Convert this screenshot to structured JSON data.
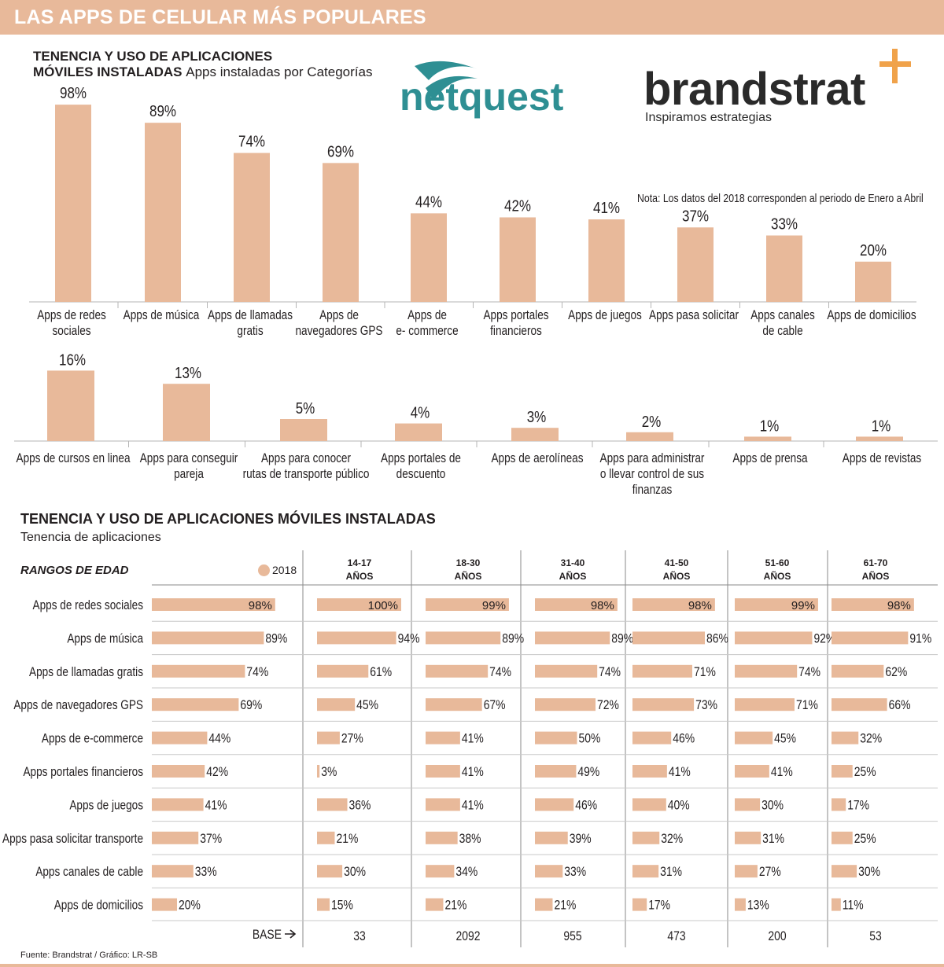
{
  "banner": {
    "title": "LAS APPS DE CELULAR MÁS POPULARES"
  },
  "section1": {
    "title_line1": "TENENCIA Y USO DE APLICACIONES",
    "title_line2": "MÓVILES INSTALADAS",
    "subtitle": "Apps instaladas por Categorías",
    "note": "Nota: Los datos del 2018 corresponden al periodo de Enero a Abril"
  },
  "logos": {
    "netquest": "netquest",
    "brandstrat": "brandstrat",
    "brandstrat_tagline": "Inspiramos estrategias"
  },
  "section2": {
    "title": "TENENCIA Y USO DE APLICACIONES MÓVILES INSTALADAS",
    "subtitle": "Tenencia de aplicaciones",
    "age_label": "RANGOS DE EDAD",
    "legend": "2018",
    "base_label": "BASE"
  },
  "footer": "Fuente: Brandstrat  / Gráfico: LR-SB",
  "colors": {
    "bar": "#e8b99a",
    "text": "#231f20",
    "teal": "#2e8f93",
    "orange": "#f0a24a"
  },
  "chart_data": [
    {
      "type": "bar",
      "title": "Apps instaladas por Categorías (1)",
      "categories": [
        "Apps de redes\nsociales",
        "Apps de música",
        "Apps de llamadas\ngratis",
        "Apps de\nnavegadores GPS",
        "Apps de\ne- commerce",
        "Apps portales\nfinancieros",
        "Apps de juegos",
        "Apps pasa solicitar",
        "Apps canales\nde cable",
        "Apps de domicilios"
      ],
      "values": [
        98,
        89,
        74,
        69,
        44,
        42,
        41,
        37,
        33,
        20
      ],
      "labels": [
        "98%",
        "89%",
        "74%",
        "69%",
        "44%",
        "42%",
        "41%",
        "37%",
        "33%",
        "20%"
      ],
      "ylim": [
        0,
        100
      ]
    },
    {
      "type": "bar",
      "title": "Apps instaladas por Categorías (2)",
      "categories": [
        "Apps de cursos en linea",
        "Apps para conseguir\npareja",
        "Apps para conocer\nrutas de transporte público",
        "Apps portales de\ndescuento",
        "Apps de aerolíneas",
        "Apps para administrar\no llevar control de sus\nfinanzas",
        "Apps de prensa",
        "Apps de revistas"
      ],
      "values": [
        16,
        13,
        5,
        4,
        3,
        2,
        1,
        1
      ],
      "labels": [
        "16%",
        "13%",
        "5%",
        "4%",
        "3%",
        "2%",
        "1%",
        "1%"
      ],
      "ylim": [
        0,
        16
      ]
    },
    {
      "type": "table",
      "title": "Tenencia de aplicaciones por rango de edad",
      "columns": [
        {
          "label": "2018",
          "base": ""
        },
        {
          "label": "14-17\nAÑOS",
          "base": "33"
        },
        {
          "label": "18-30\nAÑOS",
          "base": "2092"
        },
        {
          "label": "31-40\nAÑOS",
          "base": "955"
        },
        {
          "label": "41-50\nAÑOS",
          "base": "473"
        },
        {
          "label": "51-60\nAÑOS",
          "base": "200"
        },
        {
          "label": "61-70\nAÑOS",
          "base": "53"
        }
      ],
      "rows": [
        {
          "label": "Apps de redes sociales",
          "values": [
            98,
            100,
            99,
            98,
            98,
            99,
            98
          ],
          "labels": [
            "98%",
            "100%",
            "99%",
            "98%",
            "98%",
            "99%",
            "98%"
          ]
        },
        {
          "label": "Apps de música",
          "values": [
            89,
            94,
            89,
            89,
            86,
            92,
            91
          ],
          "labels": [
            "89%",
            "94%",
            "89%",
            "89%",
            "86%",
            "92%",
            "91%"
          ]
        },
        {
          "label": "Apps de llamadas gratis",
          "values": [
            74,
            61,
            74,
            74,
            71,
            74,
            62
          ],
          "labels": [
            "74%",
            "61%",
            "74%",
            "74%",
            "71%",
            "74%",
            "62%"
          ]
        },
        {
          "label": "Apps de navegadores GPS",
          "values": [
            69,
            45,
            67,
            72,
            73,
            71,
            66
          ],
          "labels": [
            "69%",
            "45%",
            "67%",
            "72%",
            "73%",
            "71%",
            "66%"
          ]
        },
        {
          "label": "Apps de e-commerce",
          "values": [
            44,
            27,
            41,
            50,
            46,
            45,
            32
          ],
          "labels": [
            "44%",
            "27%",
            "41%",
            "50%",
            "46%",
            "45%",
            "32%"
          ]
        },
        {
          "label": "Apps portales financieros",
          "values": [
            42,
            3,
            41,
            49,
            41,
            41,
            25
          ],
          "labels": [
            "42%",
            "3%",
            "41%",
            "49%",
            "41%",
            "41%",
            "25%"
          ]
        },
        {
          "label": "Apps de juegos",
          "values": [
            41,
            36,
            41,
            46,
            40,
            30,
            17
          ],
          "labels": [
            "41%",
            "36%",
            "41%",
            "46%",
            "40%",
            "30%",
            "17%"
          ]
        },
        {
          "label": "Apps pasa solicitar transporte",
          "values": [
            37,
            21,
            38,
            39,
            32,
            31,
            25
          ],
          "labels": [
            "37%",
            "21%",
            "38%",
            "39%",
            "32%",
            "31%",
            "25%"
          ]
        },
        {
          "label": "Apps canales de cable",
          "values": [
            33,
            30,
            34,
            33,
            31,
            27,
            30
          ],
          "labels": [
            "33%",
            "30%",
            "34%",
            "33%",
            "31%",
            "27%",
            "30%"
          ]
        },
        {
          "label": "Apps de domicilios",
          "values": [
            20,
            15,
            21,
            21,
            17,
            13,
            11
          ],
          "labels": [
            "20%",
            "15%",
            "21%",
            "21%",
            "17%",
            "13%",
            "11%"
          ]
        }
      ]
    }
  ]
}
